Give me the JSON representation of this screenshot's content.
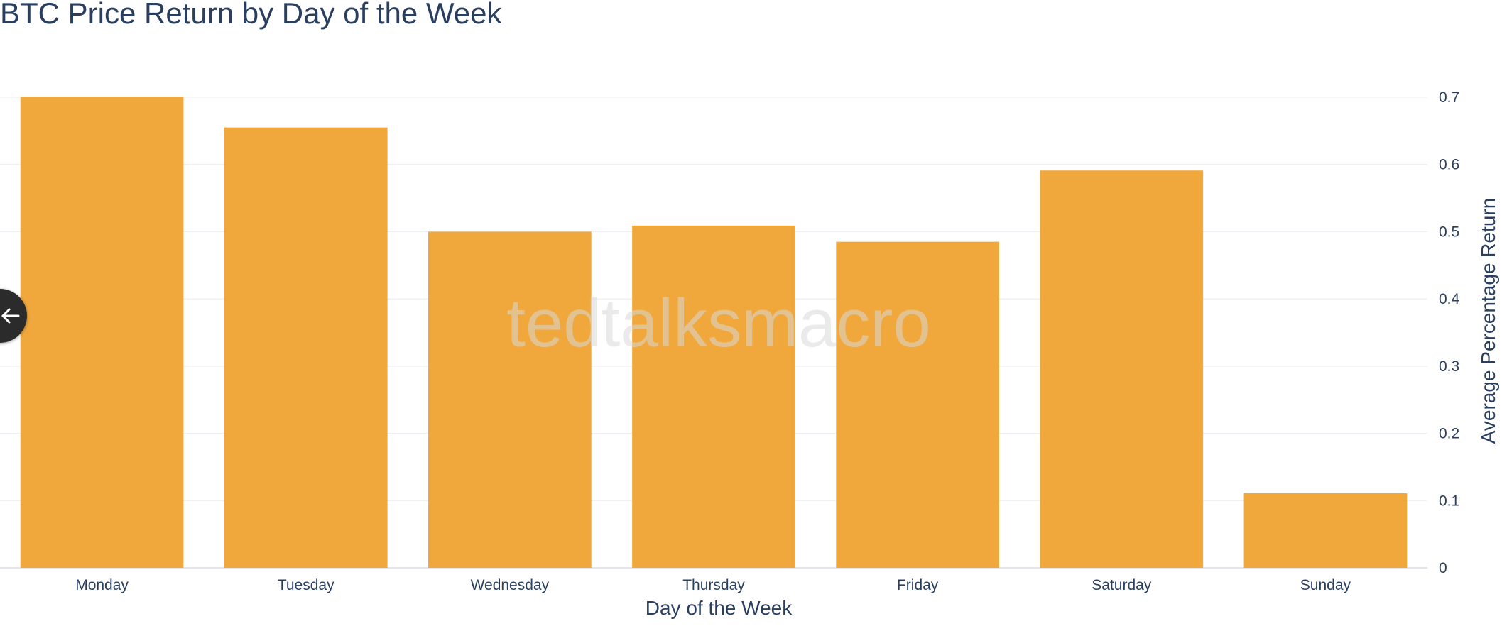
{
  "chart_data": {
    "type": "bar",
    "title": "BTC Price Return by Day of the Week",
    "xlabel": "Day of the Week",
    "ylabel": "Average Percentage Return",
    "categories": [
      "Monday",
      "Tuesday",
      "Wednesday",
      "Thursday",
      "Friday",
      "Saturday",
      "Sunday"
    ],
    "values": [
      0.701,
      0.655,
      0.5,
      0.509,
      0.485,
      0.591,
      0.111
    ],
    "ylim": [
      0,
      0.7
    ],
    "yticks": [
      0,
      0.1,
      0.2,
      0.3,
      0.4,
      0.5,
      0.6,
      0.7
    ],
    "ytick_labels": [
      "0",
      "0.1",
      "0.2",
      "0.3",
      "0.4",
      "0.5",
      "0.6",
      "0.7"
    ],
    "y_axis_side": "right",
    "grid": true,
    "bar_color": "#f0a83c",
    "gridline_color": "#eceff3",
    "text_color": "#2a3f5f",
    "watermark": "tedtalksmacro"
  },
  "controls": {
    "side_toggle_icon": "arrow-left-icon"
  }
}
